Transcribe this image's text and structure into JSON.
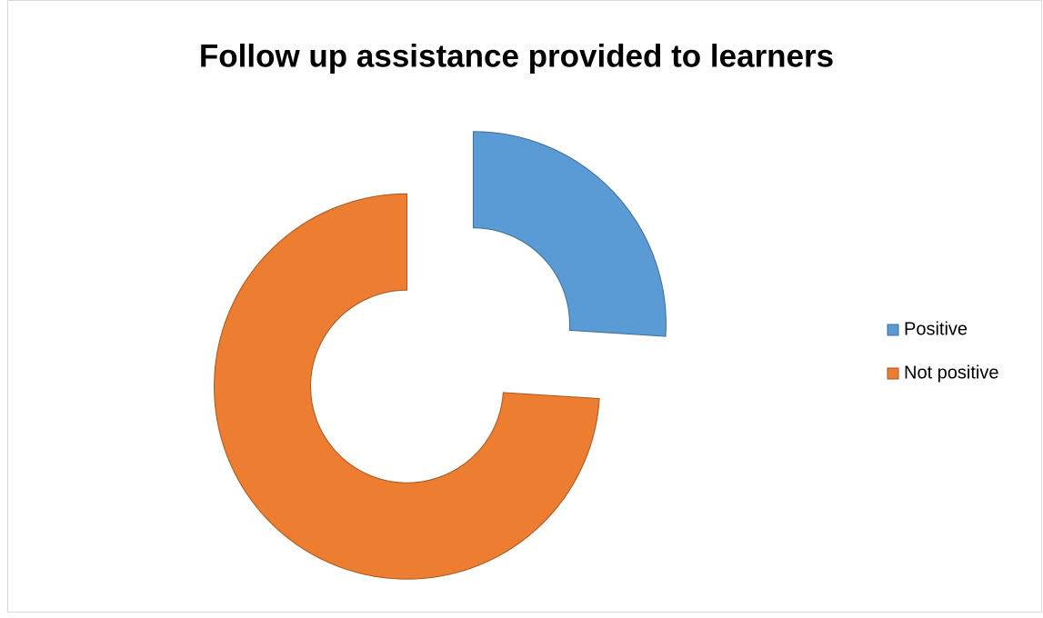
{
  "chart_data": {
    "type": "donut",
    "title": "Follow up assistance provided to learners",
    "categories": [
      "Positive",
      "Not positive"
    ],
    "values": [
      26,
      74
    ],
    "colors": [
      "#5b9bd5",
      "#ed7d31"
    ],
    "legend": "right"
  }
}
